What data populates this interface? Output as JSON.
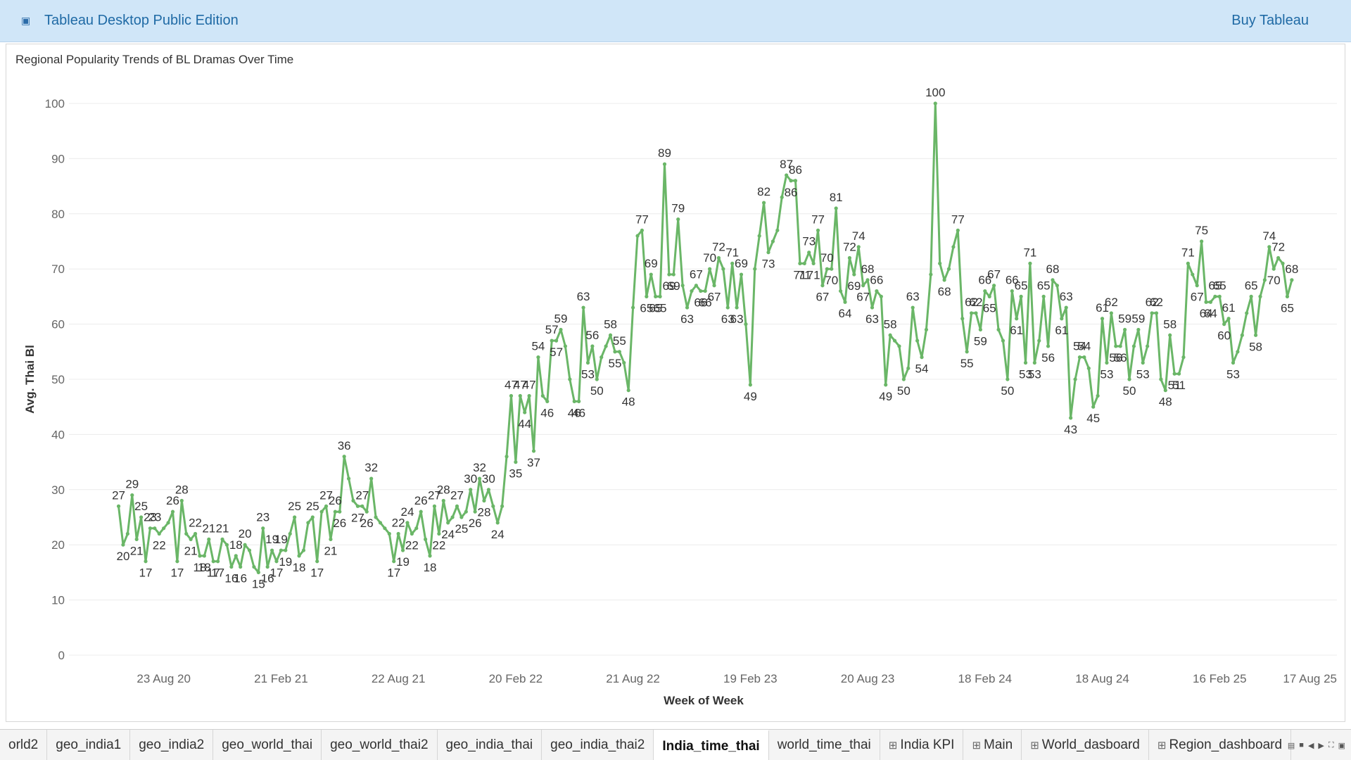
{
  "topbar": {
    "logo_icon": "tableau-logo-icon",
    "title": "Tableau Desktop Public Edition",
    "buy_label": "Buy Tableau"
  },
  "sheet": {
    "title": "Regional Popularity Trends of BL Dramas Over Time"
  },
  "colors": {
    "line": "#6ab667",
    "accent": "#1f6aa5"
  },
  "chart_data": {
    "type": "line",
    "xlabel": "Week of Week",
    "ylabel": "Avg. Thai Bl",
    "ylim": [
      0,
      100
    ],
    "yticks": [
      0,
      10,
      20,
      30,
      40,
      50,
      60,
      70,
      80,
      90,
      100
    ],
    "xticks": [
      "23 Aug 20",
      "21 Feb 21",
      "22 Aug 21",
      "20 Feb 22",
      "21 Aug 22",
      "19 Feb 23",
      "20 Aug 23",
      "18 Feb 24",
      "18 Aug 24",
      "16 Feb 25",
      "17 Aug 25"
    ],
    "xrange": [
      "2020-03-29",
      "2025-08-17"
    ],
    "grid": true,
    "series": [
      {
        "values": [
          [
            "2020-06-14",
            27
          ],
          [
            "2020-06-21",
            20
          ],
          [
            "2020-06-28",
            22
          ],
          [
            "2020-07-05",
            29
          ],
          [
            "2020-07-12",
            21
          ],
          [
            "2020-07-19",
            25
          ],
          [
            "2020-07-26",
            17
          ],
          [
            "2020-08-02",
            23
          ],
          [
            "2020-08-09",
            23
          ],
          [
            "2020-08-16",
            22
          ],
          [
            "2020-08-23",
            23
          ],
          [
            "2020-08-30",
            24
          ],
          [
            "2020-09-06",
            26
          ],
          [
            "2020-09-13",
            17
          ],
          [
            "2020-09-20",
            28
          ],
          [
            "2020-09-27",
            22
          ],
          [
            "2020-10-04",
            21
          ],
          [
            "2020-10-11",
            22
          ],
          [
            "2020-10-18",
            18
          ],
          [
            "2020-10-25",
            18
          ],
          [
            "2020-11-01",
            21
          ],
          [
            "2020-11-08",
            17
          ],
          [
            "2020-11-15",
            17
          ],
          [
            "2020-11-22",
            21
          ],
          [
            "2020-11-29",
            20
          ],
          [
            "2020-12-06",
            16
          ],
          [
            "2020-12-13",
            18
          ],
          [
            "2020-12-20",
            16
          ],
          [
            "2020-12-27",
            20
          ],
          [
            "2021-01-03",
            19
          ],
          [
            "2021-01-10",
            16
          ],
          [
            "2021-01-17",
            15
          ],
          [
            "2021-01-24",
            23
          ],
          [
            "2021-01-31",
            16
          ],
          [
            "2021-02-07",
            19
          ],
          [
            "2021-02-14",
            17
          ],
          [
            "2021-02-21",
            19
          ],
          [
            "2021-02-28",
            19
          ],
          [
            "2021-03-07",
            22
          ],
          [
            "2021-03-14",
            25
          ],
          [
            "2021-03-21",
            18
          ],
          [
            "2021-03-28",
            19
          ],
          [
            "2021-04-04",
            24
          ],
          [
            "2021-04-11",
            25
          ],
          [
            "2021-04-18",
            17
          ],
          [
            "2021-04-25",
            26
          ],
          [
            "2021-05-02",
            27
          ],
          [
            "2021-05-09",
            21
          ],
          [
            "2021-05-16",
            26
          ],
          [
            "2021-05-23",
            26
          ],
          [
            "2021-05-30",
            36
          ],
          [
            "2021-06-06",
            32
          ],
          [
            "2021-06-13",
            28
          ],
          [
            "2021-06-20",
            27
          ],
          [
            "2021-06-27",
            27
          ],
          [
            "2021-07-04",
            26
          ],
          [
            "2021-07-11",
            32
          ],
          [
            "2021-07-18",
            25
          ],
          [
            "2021-07-25",
            24
          ],
          [
            "2021-08-01",
            23
          ],
          [
            "2021-08-08",
            22
          ],
          [
            "2021-08-15",
            17
          ],
          [
            "2021-08-22",
            22
          ],
          [
            "2021-08-29",
            19
          ],
          [
            "2021-09-05",
            24
          ],
          [
            "2021-09-12",
            22
          ],
          [
            "2021-09-19",
            23
          ],
          [
            "2021-09-26",
            26
          ],
          [
            "2021-10-03",
            21
          ],
          [
            "2021-10-10",
            18
          ],
          [
            "2021-10-17",
            27
          ],
          [
            "2021-10-24",
            22
          ],
          [
            "2021-10-31",
            28
          ],
          [
            "2021-11-07",
            24
          ],
          [
            "2021-11-14",
            25
          ],
          [
            "2021-11-21",
            27
          ],
          [
            "2021-11-28",
            25
          ],
          [
            "2021-12-05",
            26
          ],
          [
            "2021-12-12",
            30
          ],
          [
            "2021-12-19",
            26
          ],
          [
            "2021-12-26",
            32
          ],
          [
            "2022-01-02",
            28
          ],
          [
            "2022-01-09",
            30
          ],
          [
            "2022-01-16",
            27
          ],
          [
            "2022-01-23",
            24
          ],
          [
            "2022-01-30",
            27
          ],
          [
            "2022-02-06",
            36
          ],
          [
            "2022-02-13",
            47
          ],
          [
            "2022-02-20",
            35
          ],
          [
            "2022-02-27",
            47
          ],
          [
            "2022-03-06",
            44
          ],
          [
            "2022-03-13",
            47
          ],
          [
            "2022-03-20",
            37
          ],
          [
            "2022-03-27",
            54
          ],
          [
            "2022-04-03",
            47
          ],
          [
            "2022-04-10",
            46
          ],
          [
            "2022-04-17",
            57
          ],
          [
            "2022-04-24",
            57
          ],
          [
            "2022-05-01",
            59
          ],
          [
            "2022-05-08",
            56
          ],
          [
            "2022-05-15",
            50
          ],
          [
            "2022-05-22",
            46
          ],
          [
            "2022-05-29",
            46
          ],
          [
            "2022-06-05",
            63
          ],
          [
            "2022-06-12",
            53
          ],
          [
            "2022-06-19",
            56
          ],
          [
            "2022-06-26",
            50
          ],
          [
            "2022-07-03",
            54
          ],
          [
            "2022-07-10",
            56
          ],
          [
            "2022-07-17",
            58
          ],
          [
            "2022-07-24",
            55
          ],
          [
            "2022-07-31",
            55
          ],
          [
            "2022-08-07",
            53
          ],
          [
            "2022-08-14",
            48
          ],
          [
            "2022-08-21",
            63
          ],
          [
            "2022-08-28",
            76
          ],
          [
            "2022-09-04",
            77
          ],
          [
            "2022-09-11",
            65
          ],
          [
            "2022-09-18",
            69
          ],
          [
            "2022-09-25",
            65
          ],
          [
            "2022-10-02",
            65
          ],
          [
            "2022-10-09",
            89
          ],
          [
            "2022-10-16",
            69
          ],
          [
            "2022-10-23",
            69
          ],
          [
            "2022-10-30",
            79
          ],
          [
            "2022-11-06",
            67
          ],
          [
            "2022-11-13",
            63
          ],
          [
            "2022-11-20",
            66
          ],
          [
            "2022-11-27",
            67
          ],
          [
            "2022-12-04",
            66
          ],
          [
            "2022-12-11",
            66
          ],
          [
            "2022-12-18",
            70
          ],
          [
            "2022-12-25",
            67
          ],
          [
            "2023-01-01",
            72
          ],
          [
            "2023-01-08",
            70
          ],
          [
            "2023-01-15",
            63
          ],
          [
            "2023-01-22",
            71
          ],
          [
            "2023-01-29",
            63
          ],
          [
            "2023-02-05",
            69
          ],
          [
            "2023-02-12",
            60
          ],
          [
            "2023-02-19",
            49
          ],
          [
            "2023-02-26",
            70
          ],
          [
            "2023-03-05",
            76
          ],
          [
            "2023-03-12",
            82
          ],
          [
            "2023-03-19",
            73
          ],
          [
            "2023-03-26",
            75
          ],
          [
            "2023-04-02",
            77
          ],
          [
            "2023-04-09",
            83
          ],
          [
            "2023-04-16",
            87
          ],
          [
            "2023-04-23",
            86
          ],
          [
            "2023-04-30",
            86
          ],
          [
            "2023-05-07",
            71
          ],
          [
            "2023-05-14",
            71
          ],
          [
            "2023-05-21",
            73
          ],
          [
            "2023-05-28",
            71
          ],
          [
            "2023-06-04",
            77
          ],
          [
            "2023-06-11",
            67
          ],
          [
            "2023-06-18",
            70
          ],
          [
            "2023-06-25",
            70
          ],
          [
            "2023-07-02",
            81
          ],
          [
            "2023-07-09",
            66
          ],
          [
            "2023-07-16",
            64
          ],
          [
            "2023-07-23",
            72
          ],
          [
            "2023-07-30",
            69
          ],
          [
            "2023-08-06",
            74
          ],
          [
            "2023-08-13",
            67
          ],
          [
            "2023-08-20",
            68
          ],
          [
            "2023-08-27",
            63
          ],
          [
            "2023-09-03",
            66
          ],
          [
            "2023-09-10",
            65
          ],
          [
            "2023-09-17",
            49
          ],
          [
            "2023-09-24",
            58
          ],
          [
            "2023-10-01",
            57
          ],
          [
            "2023-10-08",
            56
          ],
          [
            "2023-10-15",
            50
          ],
          [
            "2023-10-22",
            52
          ],
          [
            "2023-10-29",
            63
          ],
          [
            "2023-11-05",
            57
          ],
          [
            "2023-11-12",
            54
          ],
          [
            "2023-11-19",
            59
          ],
          [
            "2023-11-26",
            69
          ],
          [
            "2023-12-03",
            100
          ],
          [
            "2023-12-10",
            71
          ],
          [
            "2023-12-17",
            68
          ],
          [
            "2023-12-24",
            70
          ],
          [
            "2023-12-31",
            74
          ],
          [
            "2024-01-07",
            77
          ],
          [
            "2024-01-14",
            61
          ],
          [
            "2024-01-21",
            55
          ],
          [
            "2024-01-28",
            62
          ],
          [
            "2024-02-04",
            62
          ],
          [
            "2024-02-11",
            59
          ],
          [
            "2024-02-18",
            66
          ],
          [
            "2024-02-25",
            65
          ],
          [
            "2024-03-03",
            67
          ],
          [
            "2024-03-10",
            59
          ],
          [
            "2024-03-17",
            57
          ],
          [
            "2024-03-24",
            50
          ],
          [
            "2024-03-31",
            66
          ],
          [
            "2024-04-07",
            61
          ],
          [
            "2024-04-14",
            65
          ],
          [
            "2024-04-21",
            53
          ],
          [
            "2024-04-28",
            71
          ],
          [
            "2024-05-05",
            53
          ],
          [
            "2024-05-12",
            57
          ],
          [
            "2024-05-19",
            65
          ],
          [
            "2024-05-26",
            56
          ],
          [
            "2024-06-02",
            68
          ],
          [
            "2024-06-09",
            67
          ],
          [
            "2024-06-16",
            61
          ],
          [
            "2024-06-23",
            63
          ],
          [
            "2024-06-30",
            43
          ],
          [
            "2024-07-07",
            50
          ],
          [
            "2024-07-14",
            54
          ],
          [
            "2024-07-21",
            54
          ],
          [
            "2024-07-28",
            52
          ],
          [
            "2024-08-04",
            45
          ],
          [
            "2024-08-11",
            47
          ],
          [
            "2024-08-18",
            61
          ],
          [
            "2024-08-25",
            53
          ],
          [
            "2024-09-01",
            62
          ],
          [
            "2024-09-08",
            56
          ],
          [
            "2024-09-15",
            56
          ],
          [
            "2024-09-22",
            59
          ],
          [
            "2024-09-29",
            50
          ],
          [
            "2024-10-06",
            56
          ],
          [
            "2024-10-13",
            59
          ],
          [
            "2024-10-20",
            53
          ],
          [
            "2024-10-27",
            56
          ],
          [
            "2024-11-03",
            62
          ],
          [
            "2024-11-10",
            62
          ],
          [
            "2024-11-17",
            50
          ],
          [
            "2024-11-24",
            48
          ],
          [
            "2024-12-01",
            58
          ],
          [
            "2024-12-08",
            51
          ],
          [
            "2024-12-15",
            51
          ],
          [
            "2024-12-22",
            54
          ],
          [
            "2024-12-29",
            71
          ],
          [
            "2025-01-05",
            69
          ],
          [
            "2025-01-12",
            67
          ],
          [
            "2025-01-19",
            75
          ],
          [
            "2025-01-26",
            64
          ],
          [
            "2025-02-02",
            64
          ],
          [
            "2025-02-09",
            65
          ],
          [
            "2025-02-16",
            65
          ],
          [
            "2025-02-23",
            60
          ],
          [
            "2025-03-02",
            61
          ],
          [
            "2025-03-09",
            53
          ],
          [
            "2025-03-16",
            55
          ],
          [
            "2025-03-23",
            58
          ],
          [
            "2025-03-30",
            62
          ],
          [
            "2025-04-06",
            65
          ],
          [
            "2025-04-13",
            58
          ],
          [
            "2025-04-20",
            65
          ],
          [
            "2025-04-27",
            68
          ],
          [
            "2025-05-04",
            74
          ],
          [
            "2025-05-11",
            70
          ],
          [
            "2025-05-18",
            72
          ],
          [
            "2025-05-25",
            71
          ],
          [
            "2025-06-01",
            65
          ],
          [
            "2025-06-08",
            68
          ]
        ]
      }
    ]
  },
  "tabs": [
    {
      "label": "orld2",
      "active": false
    },
    {
      "label": "geo_india1",
      "active": false
    },
    {
      "label": "geo_india2",
      "active": false
    },
    {
      "label": "geo_world_thai",
      "active": false
    },
    {
      "label": "geo_world_thai2",
      "active": false
    },
    {
      "label": "geo_india_thai",
      "active": false
    },
    {
      "label": "geo_india_thai2",
      "active": false
    },
    {
      "label": "India_time_thai",
      "active": true
    },
    {
      "label": "world_time_thai",
      "active": false
    },
    {
      "label": "India KPI",
      "active": false,
      "dashboard": true
    },
    {
      "label": "Main",
      "active": false,
      "dashboard": true
    },
    {
      "label": "World_dasboard",
      "active": false,
      "dashboard": true
    },
    {
      "label": "Region_dashboard",
      "active": false,
      "dashboard": true
    }
  ]
}
